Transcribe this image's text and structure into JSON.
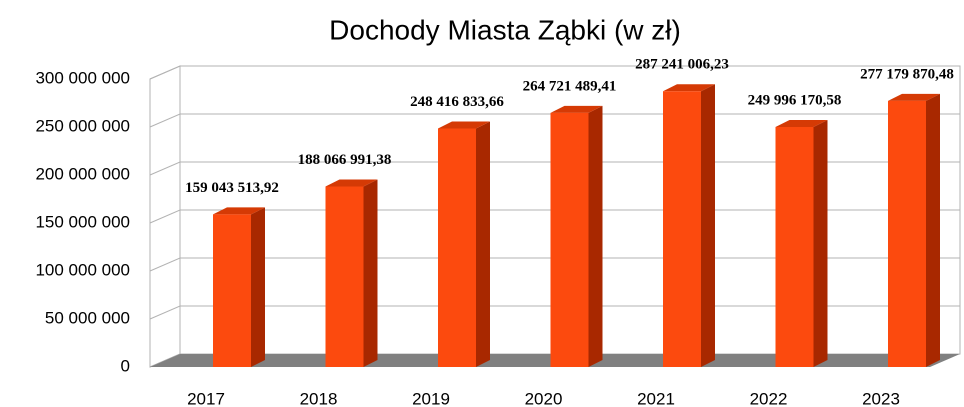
{
  "chart_data": {
    "type": "bar3d",
    "title": "Dochody Miasta Ząbki (w zł)",
    "categories": [
      "2017",
      "2018",
      "2019",
      "2020",
      "2021",
      "2022",
      "2023"
    ],
    "values": [
      159043513.92,
      188066991.38,
      248416833.66,
      264721489.41,
      287241006.23,
      249996170.58,
      277179870.48
    ],
    "value_labels": [
      "159 043 513,92",
      "188 066 991,38",
      "248 416 833,66",
      "264 721 489,41",
      "287 241 006,23",
      "249 996 170,58",
      "277 179 870,48"
    ],
    "color": "#fc4a0e",
    "ylim": [
      0,
      300000000
    ],
    "yticks": [
      0,
      {
        "value": 50000000,
        "label": "50 000 000"
      },
      {
        "value": 100000000,
        "label": "100 000 000"
      },
      {
        "value": 150000000,
        "label": "150 000 000"
      },
      {
        "value": 200000000,
        "label": "200 000 000"
      },
      {
        "value": 250000000,
        "label": "250 000 000"
      },
      {
        "value": 300000000,
        "label": "300 000 000"
      }
    ],
    "grid": true
  }
}
